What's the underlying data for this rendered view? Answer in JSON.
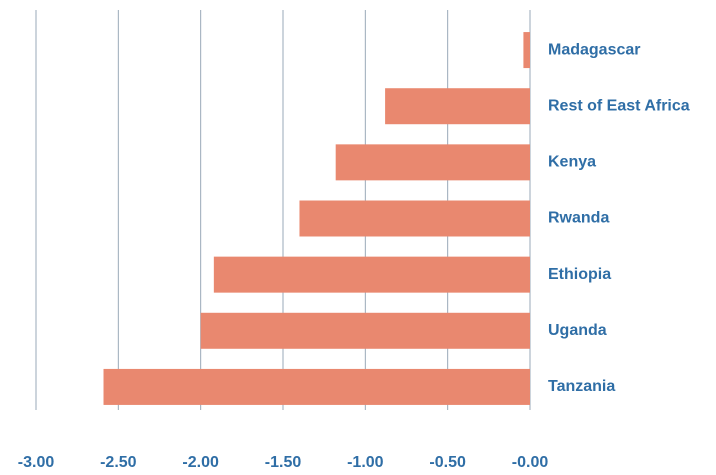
{
  "chart_data": {
    "type": "bar",
    "orientation": "horizontal",
    "categories": [
      "Madagascar",
      "Rest of East Africa",
      "Kenya",
      "Rwanda",
      "Ethiopia",
      "Uganda",
      "Tanzania"
    ],
    "values": [
      -0.04,
      -0.88,
      -1.18,
      -1.4,
      -1.92,
      -2.0,
      -2.59
    ],
    "color": "#e9886f",
    "xlim": [
      -3,
      0
    ],
    "xticks": [
      {
        "value": -3,
        "label": "-3.00"
      },
      {
        "value": -2.5,
        "label": "-2.50"
      },
      {
        "value": -2,
        "label": "-2.00"
      },
      {
        "value": -1.5,
        "label": "-1.50"
      },
      {
        "value": -1,
        "label": "-1.00"
      },
      {
        "value": -0.5,
        "label": "-0.50"
      },
      {
        "value": 0,
        "label": "-0.00"
      }
    ],
    "grid": true
  }
}
